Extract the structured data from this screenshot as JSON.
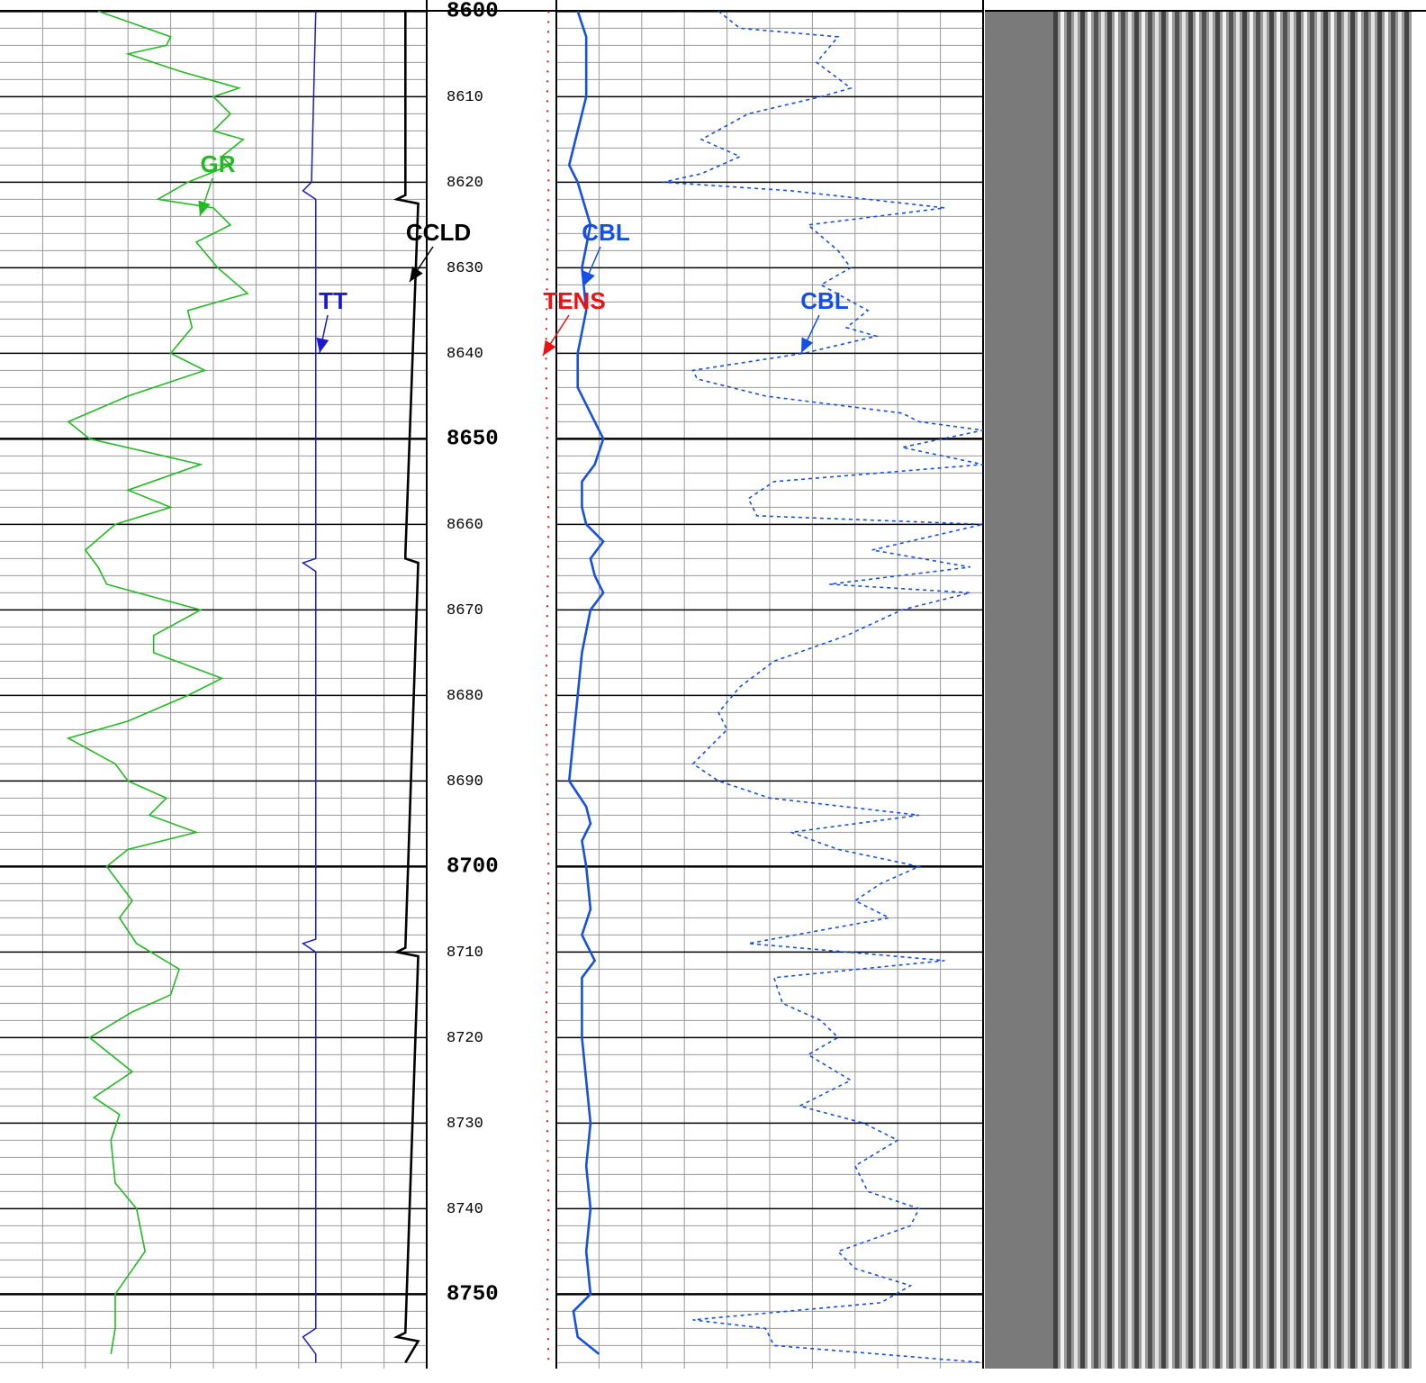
{
  "chart_data": {
    "type": "well-log",
    "ylim": [
      8598.7,
      8758.7
    ],
    "yticks": [
      8600,
      8610,
      8620,
      8630,
      8640,
      8650,
      8660,
      8670,
      8680,
      8690,
      8700,
      8710,
      8720,
      8730,
      8740,
      8750
    ],
    "grid": true,
    "minor_divisions": 5,
    "xlim": [
      0,
      10
    ],
    "xgrid_divisions": 10,
    "series": [
      {
        "name": "GR",
        "color": "#22bb22",
        "track": "1",
        "style": "solid",
        "x": [
          8600,
          8603,
          8604,
          8605,
          8607,
          8609,
          8610,
          8612,
          8614,
          8615,
          8617,
          8618,
          8620,
          8622,
          8623,
          8625,
          8627,
          8630,
          8633,
          8635,
          8637,
          8640,
          8642,
          8645,
          8648,
          8650,
          8653,
          8656,
          8658,
          8660,
          8663,
          8665,
          8667,
          8670,
          8673,
          8675,
          8678,
          8680,
          8683,
          8685,
          8688,
          8690,
          8692,
          8694,
          8696,
          8698,
          8700,
          8704,
          8706,
          8709,
          8712,
          8715,
          8717,
          8720,
          8724,
          8727,
          8729,
          8732,
          8737,
          8740,
          8745,
          8750,
          8754,
          8757
        ],
        "values": [
          2.3,
          4.0,
          3.9,
          3.0,
          4.2,
          5.6,
          5.0,
          5.4,
          5.0,
          5.7,
          5.2,
          5.4,
          4.4,
          3.7,
          5.0,
          5.4,
          4.6,
          5.1,
          5.8,
          4.4,
          4.5,
          4.0,
          4.8,
          3.0,
          1.6,
          2.1,
          4.7,
          3.0,
          4.0,
          2.7,
          2.0,
          2.3,
          2.5,
          4.7,
          3.6,
          3.6,
          5.2,
          4.4,
          3.0,
          1.6,
          2.7,
          3.0,
          3.9,
          3.5,
          4.6,
          3.0,
          2.5,
          3.1,
          2.8,
          3.2,
          4.2,
          4.0,
          3.1,
          2.1,
          3.1,
          2.2,
          2.8,
          2.6,
          2.7,
          3.2,
          3.4,
          2.7,
          2.7,
          2.6
        ]
      },
      {
        "name": "TT",
        "color": "#1a1acc",
        "track": "1",
        "style": "thin",
        "x": [
          8600,
          8620,
          8621,
          8622,
          8664,
          8664.5,
          8665.5,
          8708.5,
          8709,
          8710,
          8754,
          8755,
          8757,
          8758
        ],
        "values": [
          7.4,
          7.3,
          7.1,
          7.4,
          7.4,
          7.1,
          7.4,
          7.4,
          7.1,
          7.4,
          7.4,
          7.1,
          7.4,
          7.4
        ]
      },
      {
        "name": "CCLD",
        "color": "#000000",
        "track": "1",
        "style": "thick",
        "x": [
          8600,
          8621.5,
          8622,
          8622.5,
          8663.5,
          8664,
          8664.5,
          8709.5,
          8710,
          8710.5,
          8754.5,
          8755,
          8755.5,
          8758
        ],
        "values": [
          9.5,
          9.5,
          9.3,
          9.8,
          9.5,
          9.5,
          9.8,
          9.5,
          9.3,
          9.8,
          9.5,
          9.3,
          9.8,
          9.5
        ]
      },
      {
        "name": "TENS",
        "color": "#ee1111",
        "track": "depth",
        "style": "dotted",
        "x": [
          8600,
          8610,
          8620,
          8630,
          8640,
          8650,
          8660,
          8670,
          8680,
          8690,
          8700,
          8710,
          8720,
          8730,
          8740,
          8750,
          8758
        ],
        "values": [
          9.4,
          9.3,
          9.4,
          9.3,
          9.2,
          9.3,
          9.4,
          9.3,
          9.2,
          9.3,
          9.4,
          9.3,
          9.2,
          9.3,
          9.4,
          9.3,
          9.4
        ]
      },
      {
        "name": "CBL",
        "color": "#1450e6",
        "track": "2",
        "style": "thick",
        "x": [
          8600,
          8603,
          8610,
          8618,
          8620,
          8625,
          8630,
          8635,
          8640,
          8644,
          8646,
          8648,
          8650,
          8653,
          8655,
          8658,
          8660,
          8662,
          8664,
          8666,
          8668,
          8670,
          8675,
          8680,
          8690,
          8693,
          8695,
          8697,
          8700,
          8705,
          8708,
          8711,
          8713,
          8720,
          8725,
          8730,
          8735,
          8740,
          8745,
          8750,
          8752,
          8755,
          8757
        ],
        "values": [
          0.5,
          0.7,
          0.7,
          0.3,
          0.5,
          0.8,
          0.6,
          0.7,
          0.5,
          0.5,
          0.7,
          0.9,
          1.1,
          0.9,
          0.6,
          0.6,
          0.7,
          1.1,
          0.8,
          0.9,
          1.1,
          0.8,
          0.6,
          0.5,
          0.3,
          0.7,
          0.8,
          0.6,
          0.7,
          0.8,
          0.6,
          0.9,
          0.6,
          0.6,
          0.7,
          0.8,
          0.7,
          0.8,
          0.7,
          0.8,
          0.4,
          0.5,
          1.0
        ]
      },
      {
        "name": "CBL",
        "color": "#1450e6",
        "track": "2",
        "style": "dashed",
        "x": [
          8600,
          8602,
          8603,
          8606,
          8609,
          8610,
          8612,
          8615,
          8617,
          8619,
          8620,
          8621,
          8623,
          8625,
          8628,
          8630,
          8632,
          8635,
          8637,
          8638,
          8640,
          8642,
          8643,
          8645,
          8647,
          8648,
          8649,
          8651,
          8653,
          8655,
          8657,
          8659,
          8660,
          8663,
          8665,
          8667,
          8668,
          8670,
          8673,
          8676,
          8679,
          8682,
          8684,
          8686,
          8688,
          8690,
          8692,
          8694,
          8696,
          8698,
          8700,
          8702,
          8704,
          8706,
          8709,
          8711,
          8713,
          8716,
          8718,
          8720,
          8722,
          8725,
          8728,
          8730,
          8732,
          8735,
          8738,
          8740,
          8742,
          8745,
          8747,
          8749,
          8751,
          8753,
          8754,
          8756,
          8758
        ],
        "values": [
          3.8,
          4.3,
          6.6,
          6.1,
          6.9,
          6.2,
          4.5,
          3.4,
          4.3,
          3.4,
          2.5,
          5.5,
          9.1,
          5.9,
          6.6,
          6.9,
          6.2,
          7.3,
          6.8,
          7.5,
          5.8,
          3.2,
          3.3,
          4.9,
          8.1,
          8.5,
          10.0,
          8.1,
          10.0,
          5.1,
          4.5,
          4.7,
          10.0,
          7.4,
          9.7,
          6.4,
          9.7,
          8.1,
          6.8,
          5.1,
          4.3,
          3.8,
          4.0,
          3.6,
          3.2,
          3.8,
          5.0,
          8.5,
          5.5,
          6.6,
          8.5,
          7.6,
          7.0,
          7.8,
          4.5,
          9.1,
          5.1,
          5.3,
          6.2,
          6.6,
          5.9,
          6.9,
          5.7,
          7.2,
          8.0,
          7.0,
          7.3,
          8.5,
          8.3,
          6.6,
          7.0,
          8.3,
          7.6,
          3.2,
          4.9,
          5.1,
          10.0
        ]
      }
    ],
    "annotations": [
      {
        "text": "GR",
        "series": 0
      },
      {
        "text": "TT",
        "series": 1
      },
      {
        "text": "CCLD",
        "series": 2
      },
      {
        "text": "CBL",
        "series": 4
      },
      {
        "text": "TENS",
        "series": 3
      },
      {
        "text": "CBL",
        "series": 5
      }
    ]
  }
}
